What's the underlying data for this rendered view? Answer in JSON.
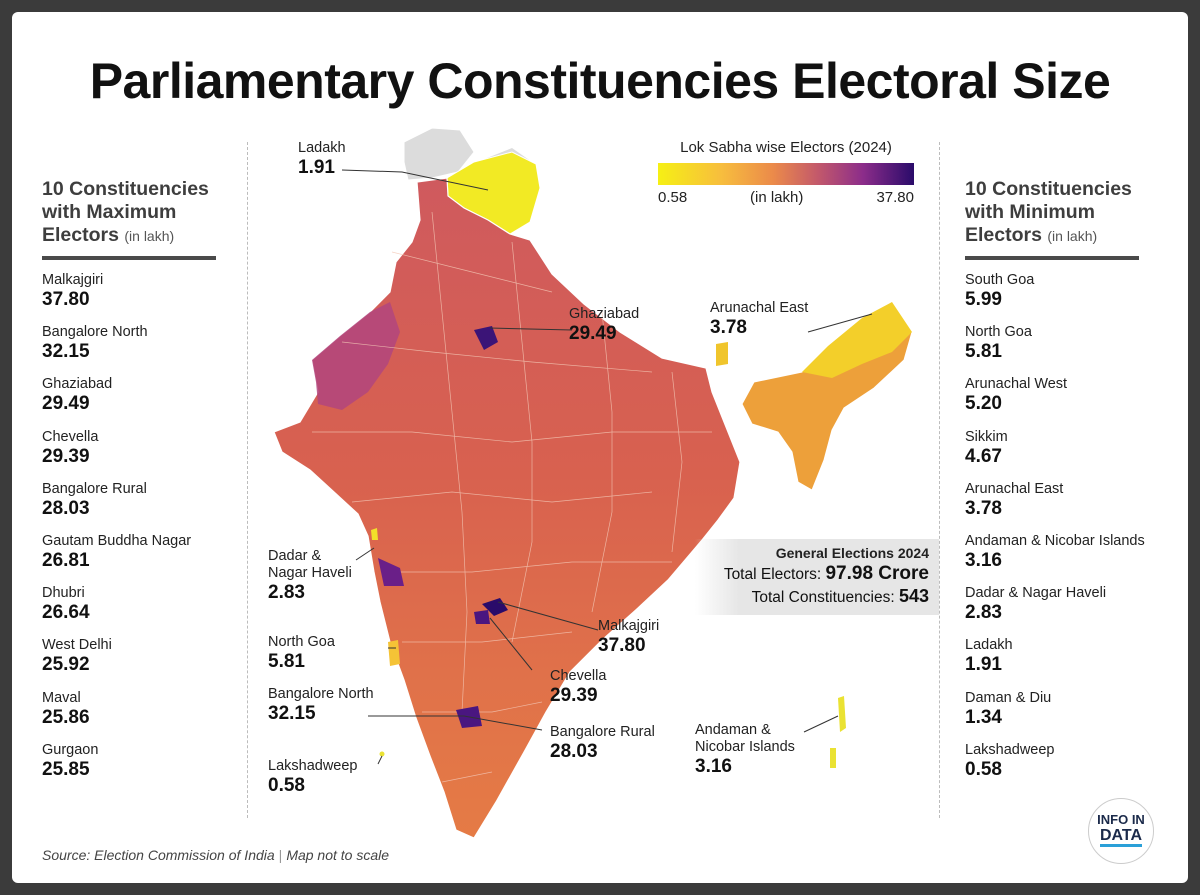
{
  "title": "Parliamentary Constituencies Electoral Size",
  "left_panel": {
    "heading_line1": "10 Constituencies",
    "heading_line2": "with Maximum",
    "heading_line3": "Electors",
    "heading_unit": "(in lakh)",
    "items": [
      {
        "name": "Malkajgiri",
        "value": "37.80"
      },
      {
        "name": "Bangalore North",
        "value": "32.15"
      },
      {
        "name": "Ghaziabad",
        "value": "29.49"
      },
      {
        "name": "Chevella",
        "value": "29.39"
      },
      {
        "name": "Bangalore Rural",
        "value": "28.03"
      },
      {
        "name": "Gautam Buddha Nagar",
        "value": "26.81"
      },
      {
        "name": "Dhubri",
        "value": "26.64"
      },
      {
        "name": "West Delhi",
        "value": "25.92"
      },
      {
        "name": "Maval",
        "value": "25.86"
      },
      {
        "name": "Gurgaon",
        "value": "25.85"
      }
    ]
  },
  "right_panel": {
    "heading_line1": "10 Constituencies",
    "heading_line2": "with Minimum",
    "heading_line3": "Electors",
    "heading_unit": "(in lakh)",
    "items": [
      {
        "name": "South Goa",
        "value": "5.99"
      },
      {
        "name": "North Goa",
        "value": "5.81"
      },
      {
        "name": "Arunachal West",
        "value": "5.20"
      },
      {
        "name": "Sikkim",
        "value": "4.67"
      },
      {
        "name": "Arunachal East",
        "value": "3.78"
      },
      {
        "name": "Andaman & Nicobar Islands",
        "value": "3.16"
      },
      {
        "name": "Dadar & Nagar Haveli",
        "value": "2.83"
      },
      {
        "name": "Ladakh",
        "value": "1.91"
      },
      {
        "name": "Daman & Diu",
        "value": "1.34"
      },
      {
        "name": "Lakshadweep",
        "value": "0.58"
      }
    ]
  },
  "legend": {
    "title": "Lok Sabha wise Electors (2024)",
    "min": "0.58",
    "max": "37.80",
    "unit": "(in lakh)",
    "colors": [
      "#f6f014",
      "#f7bd3e",
      "#eb8a4a",
      "#c45a6a",
      "#8c2d8a",
      "#2a0b6a"
    ]
  },
  "map_labels": {
    "ladakh": {
      "name": "Ladakh",
      "value": "1.91"
    },
    "ghaziabad": {
      "name": "Ghaziabad",
      "value": "29.49"
    },
    "arunachal_east": {
      "name": "Arunachal East",
      "value": "3.78"
    },
    "dadar": {
      "name_line1": "Dadar &",
      "name_line2": "Nagar Haveli",
      "value": "2.83"
    },
    "north_goa": {
      "name": "North Goa",
      "value": "5.81"
    },
    "bangalore_north": {
      "name": "Bangalore North",
      "value": "32.15"
    },
    "lakshadweep": {
      "name": "Lakshadweep",
      "value": "0.58"
    },
    "malkajgiri": {
      "name": "Malkajgiri",
      "value": "37.80"
    },
    "chevella": {
      "name": "Chevella",
      "value": "29.39"
    },
    "bangalore_rural": {
      "name": "Bangalore Rural",
      "value": "28.03"
    },
    "andaman": {
      "name_line1": "Andaman &",
      "name_line2": "Nicobar Islands",
      "value": "3.16"
    }
  },
  "summary": {
    "heading": "General Elections 2024",
    "electors_label": "Total Electors:",
    "electors_value": "97.98 Crore",
    "constituencies_label": "Total Constituencies:",
    "constituencies_value": "543"
  },
  "footer": {
    "source": "Source: Election Commission of India",
    "note": "Map not to scale"
  },
  "logo": {
    "line1": "INFO IN",
    "line2": "DATA"
  }
}
